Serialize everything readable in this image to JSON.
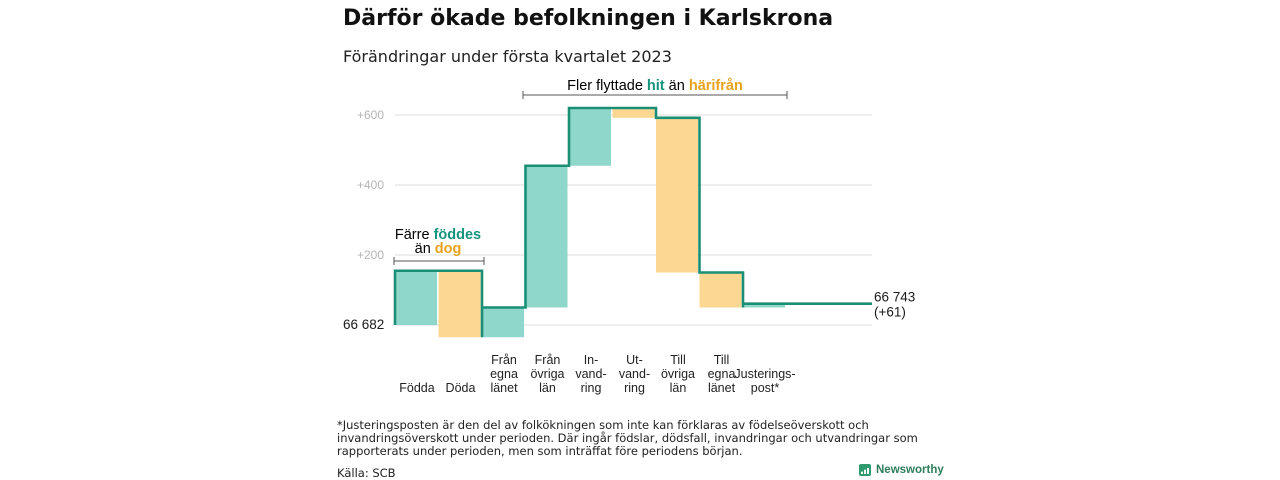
{
  "title": "Därför ökade befolkningen i Karlskrona",
  "subtitle": "Förändringar under första kvartalet 2023",
  "footnote": "*Justeringsposten är den del av folkökningen som inte kan förklaras av födelseöverskott och invandringsöverskott under perioden. Där ingår födslar, dödsfall, invandringar och utvandringar som rapporterats under perioden, men som inträffat före periodens början.",
  "source": "Källa: SCB",
  "logo_text": "Newsworthy",
  "colors": {
    "increase": "#8fd6cb",
    "decrease": "#fcd792",
    "line": "#1a8f76",
    "grid": "#dddddd",
    "tick": "#b5b5b5",
    "teal_text": "#16937c",
    "orange_text": "#e8a21e"
  },
  "chart_data": {
    "type": "waterfall",
    "start": {
      "label": "66 682"
    },
    "end": {
      "label_line1": "66 743",
      "label_line2": "(+61)"
    },
    "yticks": [
      {
        "value": 200,
        "label": "+200"
      },
      {
        "value": 400,
        "label": "+400"
      },
      {
        "value": 600,
        "label": "+600"
      }
    ],
    "ylim": [
      -40,
      640
    ],
    "steps": [
      {
        "name": "Födda",
        "lines": [
          "Födda"
        ],
        "from": 0,
        "to": 155,
        "kind": "increase"
      },
      {
        "name": "Döda",
        "lines": [
          "Döda"
        ],
        "from": 155,
        "to": -35,
        "kind": "decrease"
      },
      {
        "name": "Från egna länet",
        "lines": [
          "Från",
          "egna",
          "länet"
        ],
        "from": -35,
        "to": 50,
        "kind": "increase"
      },
      {
        "name": "Från övriga län",
        "lines": [
          "Från",
          "övriga",
          "län"
        ],
        "from": 50,
        "to": 455,
        "kind": "increase"
      },
      {
        "name": "Invandring",
        "lines": [
          "In-",
          "vand-",
          "ring"
        ],
        "from": 455,
        "to": 620,
        "kind": "increase"
      },
      {
        "name": "Utvandring",
        "lines": [
          "Ut-",
          "vand-",
          "ring"
        ],
        "from": 620,
        "to": 592,
        "kind": "decrease"
      },
      {
        "name": "Till övriga län",
        "lines": [
          "Till",
          "övriga",
          "län"
        ],
        "from": 592,
        "to": 150,
        "kind": "decrease"
      },
      {
        "name": "Till egna länet",
        "lines": [
          "Till",
          "egna",
          "länet"
        ],
        "from": 150,
        "to": 50,
        "kind": "decrease"
      },
      {
        "name": "Justeringspost*",
        "lines": [
          "Justerings-",
          "post*"
        ],
        "from": 50,
        "to": 61,
        "kind": "increase"
      }
    ],
    "annotations": [
      {
        "name": "births-deaths",
        "line1": "Färre",
        "line1_hl": "föddes",
        "line2": "än",
        "line2_hl": "dog"
      },
      {
        "name": "migration",
        "text": "Fler flyttade",
        "hl1": "hit",
        "mid": "än",
        "hl2": "härifrån"
      }
    ]
  }
}
